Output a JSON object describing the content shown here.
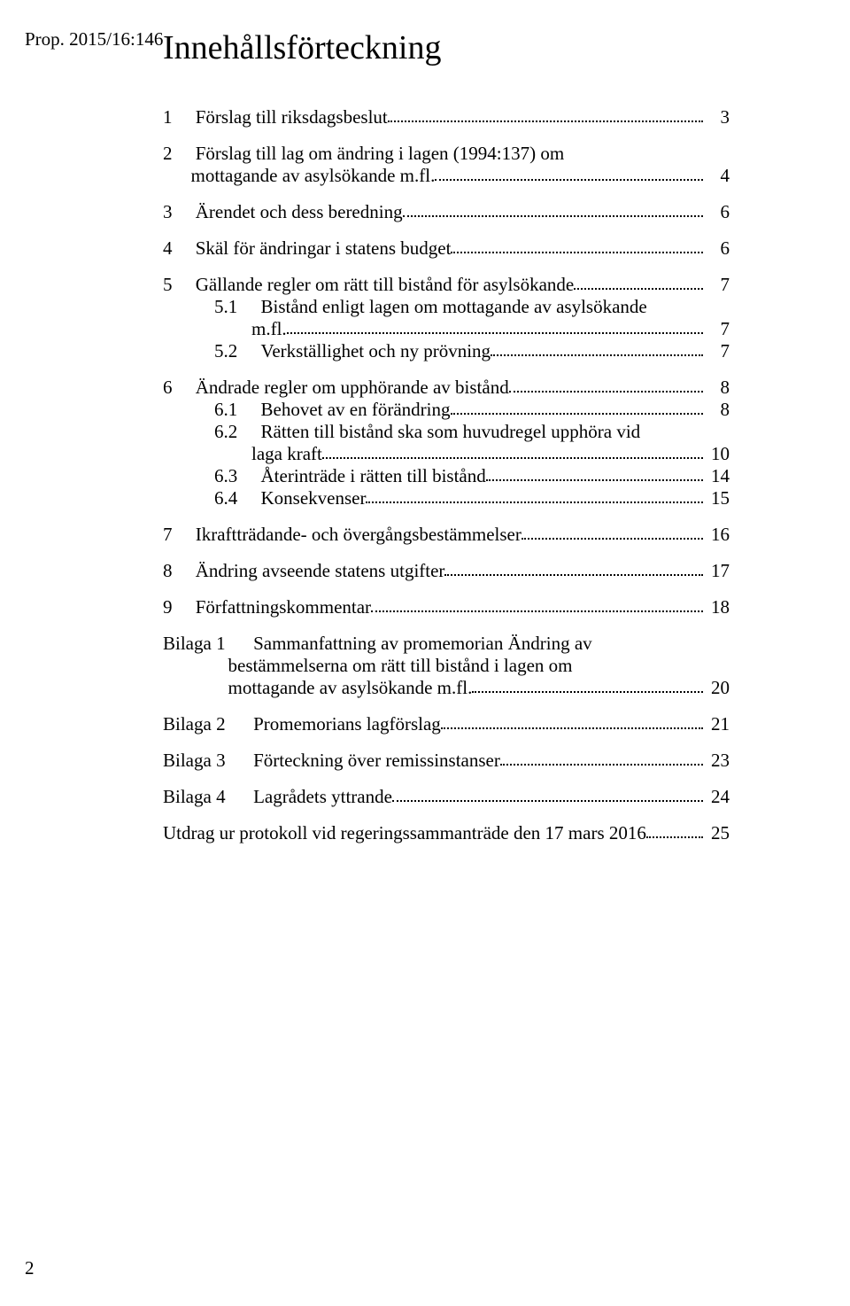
{
  "header_id": "Prop. 2015/16:146",
  "title": "Innehållsförteckning",
  "page_number": "2",
  "toc": [
    {
      "type": "l1",
      "num": "1",
      "text": "Förslag till riksdagsbeslut",
      "page": "3",
      "gap": false
    },
    {
      "type": "l1wrap",
      "num": "2",
      "line1": "Förslag till lag om ändring i lagen (1994:137) om",
      "line2pad": "mottagande av asylsökande m.fl.",
      "page": "4",
      "gap": true
    },
    {
      "type": "l1",
      "num": "3",
      "text": "Ärendet och dess beredning",
      "page": "6",
      "gap": true
    },
    {
      "type": "l1",
      "num": "4",
      "text": "Skäl för ändringar i statens budget",
      "page": "6",
      "gap": true
    },
    {
      "type": "l1",
      "num": "5",
      "text": "Gällande regler om rätt till bistånd för asylsökande",
      "page": "7",
      "gap": true
    },
    {
      "type": "l2wrap",
      "num": "5.1",
      "line1": "Bistånd enligt lagen om mottagande av asylsökande",
      "line2pad": "m.fl.",
      "page": "7",
      "gap": false
    },
    {
      "type": "l2",
      "num": "5.2",
      "text": "Verkställighet och ny prövning",
      "page": "7",
      "gap": false
    },
    {
      "type": "l1",
      "num": "6",
      "text": "Ändrade regler om upphörande av bistånd",
      "page": "8",
      "gap": true
    },
    {
      "type": "l2",
      "num": "6.1",
      "text": "Behovet av en förändring",
      "page": "8",
      "gap": false
    },
    {
      "type": "l2wrap",
      "num": "6.2",
      "line1": "Rätten till bistånd ska som huvudregel upphöra vid",
      "line2pad": "laga kraft",
      "page": "10",
      "gap": false
    },
    {
      "type": "l2",
      "num": "6.3",
      "text": "Återinträde i rätten till bistånd",
      "page": "14",
      "gap": false
    },
    {
      "type": "l2",
      "num": "6.4",
      "text": "Konsekvenser",
      "page": "15",
      "gap": false
    },
    {
      "type": "l1",
      "num": "7",
      "text": "Ikraftträdande- och övergångsbestämmelser",
      "page": "16",
      "gap": true
    },
    {
      "type": "l1",
      "num": "8",
      "text": "Ändring avseende statens utgifter",
      "page": "17",
      "gap": true
    },
    {
      "type": "l1",
      "num": "9",
      "text": "Författningskommentar",
      "page": "18",
      "gap": true
    },
    {
      "type": "bilwrap",
      "num": "Bilaga 1",
      "line1": "Sammanfattning av promemorian Ändring av",
      "line2": "bestämmelserna om rätt till bistånd i lagen om",
      "line3": "mottagande av asylsökande m.fl.",
      "page": "20",
      "gap": true
    },
    {
      "type": "bil",
      "num": "Bilaga 2",
      "text": "Promemorians lagförslag",
      "page": "21",
      "gap": true
    },
    {
      "type": "bil",
      "num": "Bilaga 3",
      "text": "Förteckning över remissinstanser",
      "page": "23",
      "gap": true
    },
    {
      "type": "bil",
      "num": "Bilaga 4",
      "text": "Lagrådets yttrande",
      "page": "24",
      "gap": true
    },
    {
      "type": "plain",
      "text": "Utdrag ur protokoll vid regeringssammanträde den 17 mars 2016",
      "page": "25",
      "gap": true
    }
  ]
}
